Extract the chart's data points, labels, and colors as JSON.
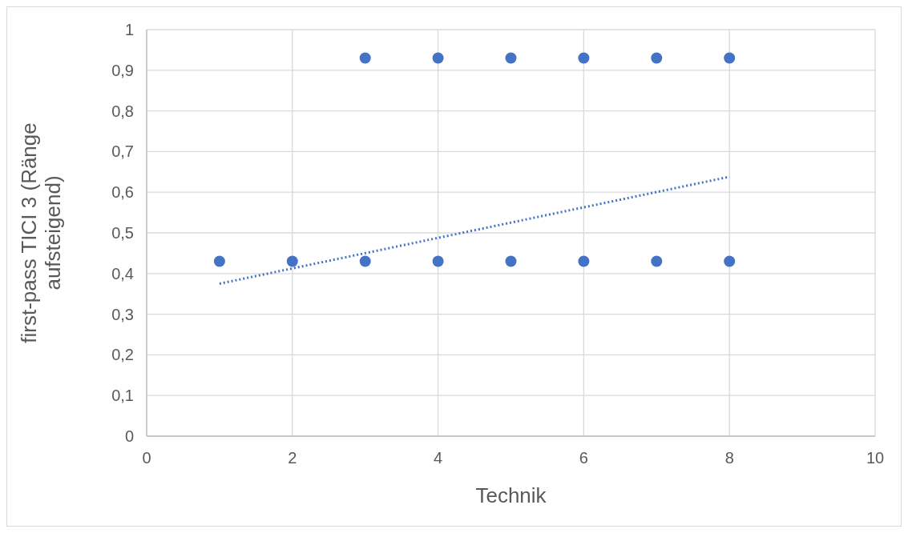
{
  "chart_data": {
    "type": "scatter",
    "xlabel": "Technik",
    "ylabel": "first-pass TICI 3 (Ränge aufsteigend)",
    "xlim": [
      0,
      10
    ],
    "xticks": [
      0,
      2,
      4,
      6,
      8,
      10
    ],
    "ylim": [
      0,
      1
    ],
    "yticks": [
      0,
      {
        "value": 0.1,
        "label": "0,1"
      },
      {
        "value": 0.2,
        "label": "0,2"
      },
      {
        "value": 0.3,
        "label": "0,3"
      },
      {
        "value": 0.4,
        "label": "0,4"
      },
      {
        "value": 0.5,
        "label": "0,5"
      },
      {
        "value": 0.6,
        "label": "0,6"
      },
      {
        "value": 0.7,
        "label": "0,7"
      },
      {
        "value": 0.8,
        "label": "0,8"
      },
      {
        "value": 0.9,
        "label": "0,9"
      },
      1
    ],
    "grid": true,
    "marker": "circle",
    "series": [
      {
        "color": "#4472c4",
        "x": [
          1,
          2,
          3,
          3,
          4,
          4,
          5,
          5,
          6,
          6,
          7,
          7,
          8,
          8
        ],
        "values": [
          0.43,
          0.43,
          0.43,
          0.93,
          0.43,
          0.93,
          0.43,
          0.93,
          0.43,
          0.93,
          0.43,
          0.93,
          0.43,
          0.93
        ]
      },
      {
        "type": "line",
        "color": "#4472c4",
        "line_style": "dotted",
        "marker": "none",
        "x": [
          1,
          8
        ],
        "values": [
          0.375,
          0.638
        ]
      }
    ]
  }
}
